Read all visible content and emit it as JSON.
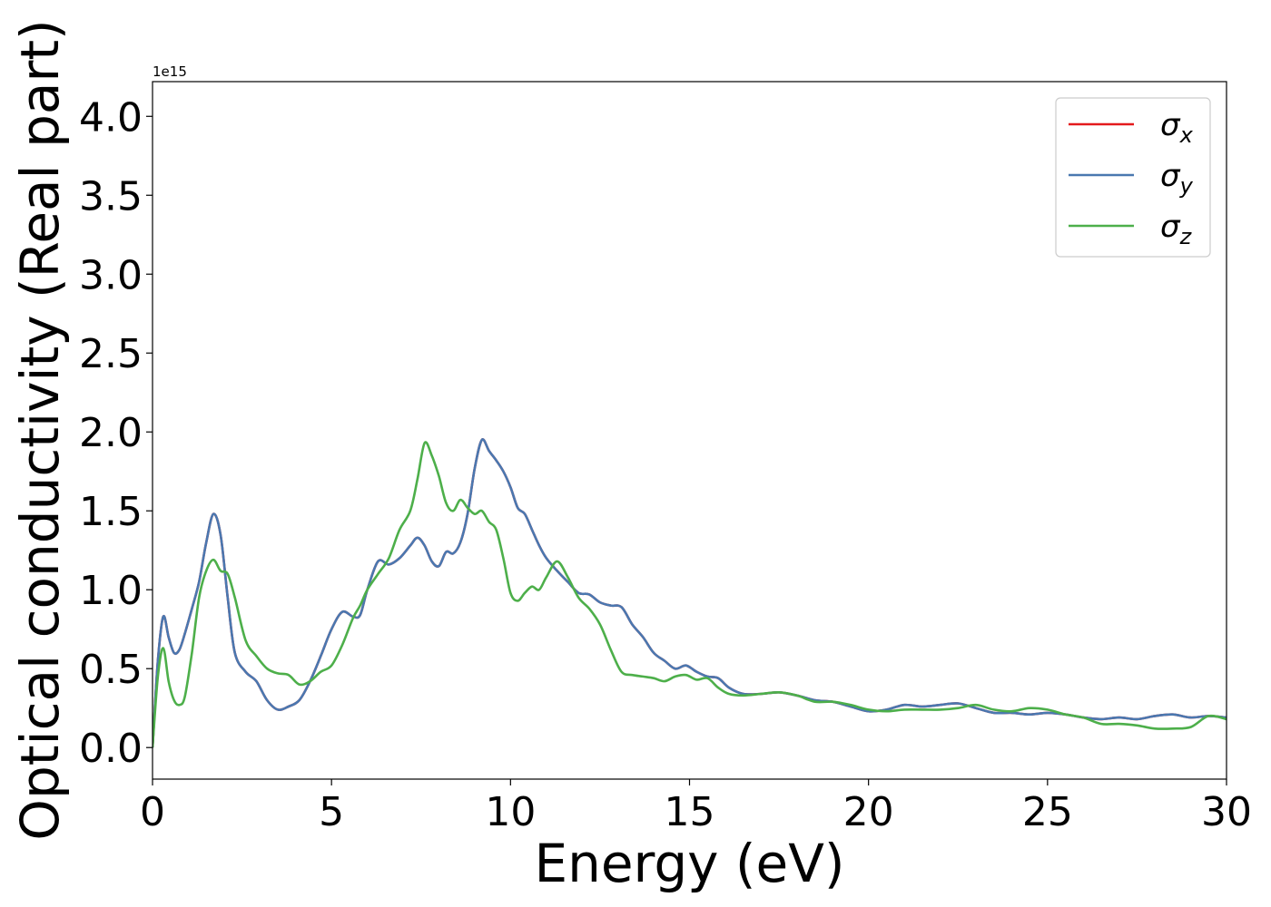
{
  "chart_data": {
    "type": "line",
    "xlabel": "Energy (eV)",
    "ylabel": "Optical conductivity (Real part)",
    "y_offset_text": "1e15",
    "y_scale_factor": 1000000000000000.0,
    "xlim": [
      0,
      30
    ],
    "ylim": [
      -0.2,
      4.22
    ],
    "xticks": [
      0,
      5,
      10,
      15,
      20,
      25,
      30
    ],
    "xtick_labels": [
      "0",
      "5",
      "10",
      "15",
      "20",
      "25",
      "30"
    ],
    "yticks": [
      0.0,
      0.5,
      1.0,
      1.5,
      2.0,
      2.5,
      3.0,
      3.5,
      4.0
    ],
    "ytick_labels": [
      "0.0",
      "0.5",
      "1.0",
      "1.5",
      "2.0",
      "2.5",
      "3.0",
      "3.5",
      "4.0"
    ],
    "grid": false,
    "legend_position": "top-right",
    "series": [
      {
        "name": "σx",
        "symbol": "σ",
        "subscript": "x",
        "color": "#e41a1c",
        "x": [
          0,
          0.15,
          0.3,
          0.45,
          0.6,
          0.75,
          0.9,
          1.1,
          1.3,
          1.5,
          1.7,
          1.9,
          2.1,
          2.3,
          2.6,
          2.9,
          3.2,
          3.5,
          3.8,
          4.1,
          4.4,
          4.7,
          5.0,
          5.3,
          5.6,
          5.8,
          6.0,
          6.3,
          6.6,
          6.9,
          7.2,
          7.4,
          7.6,
          7.8,
          8.0,
          8.2,
          8.4,
          8.6,
          8.8,
          9.0,
          9.2,
          9.4,
          9.6,
          9.8,
          10.0,
          10.2,
          10.4,
          10.6,
          10.8,
          11.0,
          11.3,
          11.6,
          11.9,
          12.2,
          12.5,
          12.8,
          13.1,
          13.4,
          13.7,
          14.0,
          14.3,
          14.6,
          14.9,
          15.2,
          15.5,
          15.8,
          16.1,
          16.5,
          17.0,
          17.5,
          18.0,
          18.5,
          19.0,
          19.5,
          20.0,
          20.5,
          21.0,
          21.5,
          22.0,
          22.5,
          23.0,
          23.5,
          24.0,
          24.5,
          25.0,
          25.5,
          26.0,
          26.5,
          27.0,
          27.5,
          28.0,
          28.5,
          29.0,
          29.5,
          30.0
        ],
        "y": [
          0.0,
          0.55,
          0.83,
          0.7,
          0.6,
          0.62,
          0.72,
          0.88,
          1.05,
          1.3,
          1.48,
          1.35,
          0.95,
          0.6,
          0.48,
          0.42,
          0.3,
          0.24,
          0.26,
          0.3,
          0.42,
          0.58,
          0.75,
          0.86,
          0.83,
          0.84,
          1.0,
          1.18,
          1.16,
          1.2,
          1.28,
          1.33,
          1.28,
          1.18,
          1.15,
          1.24,
          1.23,
          1.3,
          1.48,
          1.77,
          1.95,
          1.88,
          1.82,
          1.75,
          1.65,
          1.52,
          1.48,
          1.38,
          1.28,
          1.2,
          1.12,
          1.05,
          0.98,
          0.97,
          0.92,
          0.9,
          0.89,
          0.78,
          0.7,
          0.6,
          0.55,
          0.5,
          0.52,
          0.48,
          0.45,
          0.44,
          0.38,
          0.34,
          0.34,
          0.35,
          0.33,
          0.3,
          0.29,
          0.26,
          0.23,
          0.24,
          0.27,
          0.26,
          0.27,
          0.28,
          0.25,
          0.22,
          0.22,
          0.21,
          0.22,
          0.21,
          0.19,
          0.18,
          0.19,
          0.18,
          0.2,
          0.21,
          0.19,
          0.2,
          0.19
        ]
      },
      {
        "name": "σy",
        "symbol": "σ",
        "subscript": "y",
        "color": "#4a78b0",
        "x": [
          0,
          0.15,
          0.3,
          0.45,
          0.6,
          0.75,
          0.9,
          1.1,
          1.3,
          1.5,
          1.7,
          1.9,
          2.1,
          2.3,
          2.6,
          2.9,
          3.2,
          3.5,
          3.8,
          4.1,
          4.4,
          4.7,
          5.0,
          5.3,
          5.6,
          5.8,
          6.0,
          6.3,
          6.6,
          6.9,
          7.2,
          7.4,
          7.6,
          7.8,
          8.0,
          8.2,
          8.4,
          8.6,
          8.8,
          9.0,
          9.2,
          9.4,
          9.6,
          9.8,
          10.0,
          10.2,
          10.4,
          10.6,
          10.8,
          11.0,
          11.3,
          11.6,
          11.9,
          12.2,
          12.5,
          12.8,
          13.1,
          13.4,
          13.7,
          14.0,
          14.3,
          14.6,
          14.9,
          15.2,
          15.5,
          15.8,
          16.1,
          16.5,
          17.0,
          17.5,
          18.0,
          18.5,
          19.0,
          19.5,
          20.0,
          20.5,
          21.0,
          21.5,
          22.0,
          22.5,
          23.0,
          23.5,
          24.0,
          24.5,
          25.0,
          25.5,
          26.0,
          26.5,
          27.0,
          27.5,
          28.0,
          28.5,
          29.0,
          29.5,
          30.0
        ],
        "y": [
          0.0,
          0.55,
          0.83,
          0.7,
          0.6,
          0.62,
          0.72,
          0.88,
          1.05,
          1.3,
          1.48,
          1.35,
          0.95,
          0.6,
          0.48,
          0.42,
          0.3,
          0.24,
          0.26,
          0.3,
          0.42,
          0.58,
          0.75,
          0.86,
          0.83,
          0.84,
          1.0,
          1.18,
          1.16,
          1.2,
          1.28,
          1.33,
          1.28,
          1.18,
          1.15,
          1.24,
          1.23,
          1.3,
          1.48,
          1.77,
          1.95,
          1.88,
          1.82,
          1.75,
          1.65,
          1.52,
          1.48,
          1.38,
          1.28,
          1.2,
          1.12,
          1.05,
          0.98,
          0.97,
          0.92,
          0.9,
          0.89,
          0.78,
          0.7,
          0.6,
          0.55,
          0.5,
          0.52,
          0.48,
          0.45,
          0.44,
          0.38,
          0.34,
          0.34,
          0.35,
          0.33,
          0.3,
          0.29,
          0.26,
          0.23,
          0.24,
          0.27,
          0.26,
          0.27,
          0.28,
          0.25,
          0.22,
          0.22,
          0.21,
          0.22,
          0.21,
          0.19,
          0.18,
          0.19,
          0.18,
          0.2,
          0.21,
          0.19,
          0.2,
          0.19
        ]
      },
      {
        "name": "σz",
        "symbol": "σ",
        "subscript": "z",
        "color": "#4daf4a",
        "x": [
          0,
          0.15,
          0.3,
          0.45,
          0.6,
          0.75,
          0.9,
          1.1,
          1.3,
          1.5,
          1.7,
          1.9,
          2.1,
          2.3,
          2.6,
          2.9,
          3.2,
          3.5,
          3.8,
          4.1,
          4.4,
          4.7,
          5.0,
          5.3,
          5.6,
          5.8,
          6.0,
          6.3,
          6.6,
          6.9,
          7.2,
          7.4,
          7.6,
          7.8,
          8.0,
          8.2,
          8.4,
          8.6,
          8.8,
          9.0,
          9.2,
          9.4,
          9.6,
          9.8,
          10.0,
          10.2,
          10.4,
          10.6,
          10.8,
          11.0,
          11.3,
          11.6,
          11.9,
          12.2,
          12.5,
          12.8,
          13.1,
          13.4,
          13.7,
          14.0,
          14.3,
          14.6,
          14.9,
          15.2,
          15.5,
          15.8,
          16.1,
          16.5,
          17.0,
          17.5,
          18.0,
          18.5,
          19.0,
          19.5,
          20.0,
          20.5,
          21.0,
          21.5,
          22.0,
          22.5,
          23.0,
          23.5,
          24.0,
          24.5,
          25.0,
          25.5,
          26.0,
          26.5,
          27.0,
          27.5,
          28.0,
          28.5,
          29.0,
          29.5,
          30.0
        ],
        "y": [
          0.0,
          0.45,
          0.63,
          0.42,
          0.3,
          0.27,
          0.32,
          0.6,
          0.95,
          1.12,
          1.19,
          1.12,
          1.1,
          0.95,
          0.68,
          0.58,
          0.5,
          0.47,
          0.46,
          0.4,
          0.42,
          0.48,
          0.52,
          0.65,
          0.82,
          0.9,
          1.0,
          1.1,
          1.2,
          1.38,
          1.5,
          1.7,
          1.93,
          1.85,
          1.72,
          1.55,
          1.5,
          1.57,
          1.52,
          1.48,
          1.5,
          1.43,
          1.38,
          1.2,
          0.98,
          0.93,
          0.98,
          1.02,
          1.0,
          1.08,
          1.18,
          1.08,
          0.95,
          0.88,
          0.78,
          0.62,
          0.48,
          0.46,
          0.45,
          0.44,
          0.42,
          0.45,
          0.46,
          0.43,
          0.44,
          0.38,
          0.34,
          0.33,
          0.34,
          0.35,
          0.33,
          0.29,
          0.29,
          0.27,
          0.24,
          0.23,
          0.24,
          0.24,
          0.24,
          0.25,
          0.27,
          0.24,
          0.23,
          0.25,
          0.24,
          0.21,
          0.19,
          0.15,
          0.15,
          0.14,
          0.12,
          0.12,
          0.13,
          0.2,
          0.18
        ]
      }
    ]
  }
}
